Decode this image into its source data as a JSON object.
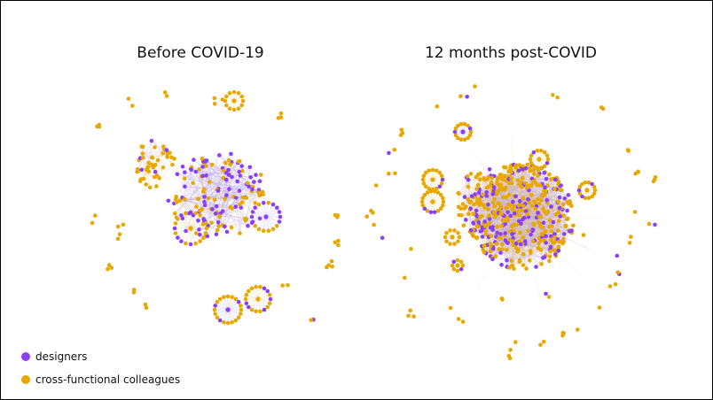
{
  "titles": {
    "before": "Before COVID-19",
    "after": "12 months post-COVID"
  },
  "legend": [
    {
      "label": "designers",
      "color": "#8a3ffc"
    },
    {
      "label": "cross-functional colleagues",
      "color": "#e8a800"
    }
  ],
  "colors": {
    "designer": "#8a3ffc",
    "colleague": "#e8a800",
    "edge_designer": "#b7a3f5",
    "edge_colleague": "#e7c874"
  },
  "networks": {
    "before": {
      "designer_share": 0.22,
      "clusters": 4,
      "satellite_groups": 16,
      "density": "sparse"
    },
    "after": {
      "designer_share": 0.32,
      "clusters": 1,
      "satellite_groups": 40,
      "density": "dense"
    }
  }
}
